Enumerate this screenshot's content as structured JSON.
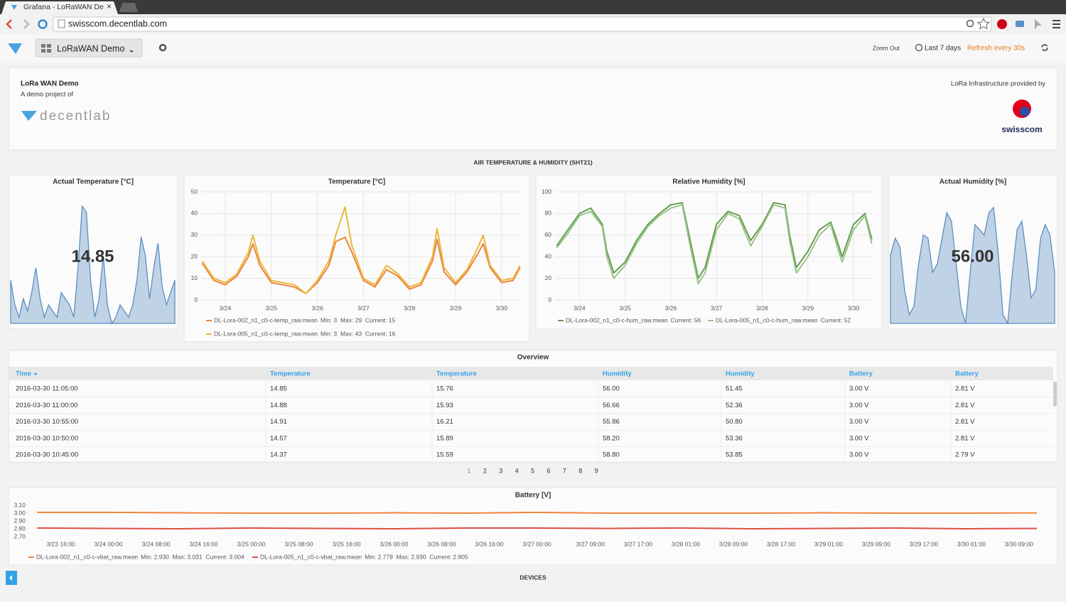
{
  "browser": {
    "tab_title": "Grafana - LoRaWAN De",
    "url": "swisscom.decentlab.com"
  },
  "toolbar": {
    "dashboard": "LoRaWAN Demo",
    "zoom_out": "Zoom Out",
    "time_range": "Last 7 days",
    "refresh": "Refresh every 30s"
  },
  "header": {
    "title": "LoRa WAN Demo",
    "subtitle": "A demo project of",
    "logo": "decentlab",
    "provided_by": "LoRa Infrastructure provided by",
    "provider_logo": "swisscom"
  },
  "row_title": "AIR TEMPERATURE & HUMIDITY (SHT21)",
  "chart_data": [
    {
      "type": "singlestat",
      "title": "Actual Temperature [°C]",
      "values": [
        14.85
      ],
      "color": "#7eb26d",
      "sparkline": [
        18,
        14,
        12,
        15,
        13,
        16,
        20,
        15,
        12,
        14,
        13,
        12,
        16,
        15,
        14,
        12,
        20,
        30,
        29,
        18,
        12,
        15,
        22,
        14,
        11,
        12,
        14,
        13,
        12,
        14,
        18,
        25,
        22,
        15,
        20,
        24,
        17,
        14,
        16,
        18
      ]
    },
    {
      "type": "line",
      "title": "Temperature [°C]",
      "x": [
        23.5,
        23.75,
        24,
        24.25,
        24.5,
        24.6,
        24.75,
        25,
        25.25,
        25.5,
        25.75,
        26,
        26.25,
        26.4,
        26.6,
        26.75,
        27,
        27.25,
        27.5,
        27.75,
        28,
        28.25,
        28.5,
        28.6,
        28.75,
        29,
        29.25,
        29.5,
        29.6,
        29.75,
        30,
        30.25,
        30.4
      ],
      "xlim": [
        23.46,
        30.45
      ],
      "xticks": [
        {
          "value": 24,
          "label": "3/24"
        },
        {
          "value": 25,
          "label": "3/25"
        },
        {
          "value": 26,
          "label": "3/26"
        },
        {
          "value": 27,
          "label": "3/27"
        },
        {
          "value": 28,
          "label": "3/28"
        },
        {
          "value": 29,
          "label": "3/29"
        },
        {
          "value": 30,
          "label": "3/30"
        }
      ],
      "ylim": [
        0,
        50
      ],
      "yticks": [
        0,
        10,
        20,
        30,
        40,
        50
      ],
      "grid": true,
      "series": [
        {
          "name": "DL-Lora-002_n1_c0-c-temp_raw.mean",
          "legend_stats": "Min: 3  Max: 29  Current: 15",
          "color": "#ef843c",
          "values": [
            17,
            9,
            7,
            11,
            20,
            26,
            16,
            8,
            7,
            6,
            3,
            8,
            16,
            27,
            29,
            22,
            9,
            6,
            14,
            11,
            5,
            7,
            18,
            28,
            13,
            7,
            13,
            22,
            26,
            15,
            8,
            9,
            15
          ]
        },
        {
          "name": "DL-Lora-005_n1_c0-c-temp_raw.mean",
          "legend_stats": "Min: 3  Max: 43  Current: 16",
          "color": "#eab839",
          "values": [
            18,
            10,
            8,
            12,
            22,
            30,
            18,
            9,
            8,
            7,
            3,
            9,
            18,
            30,
            43,
            25,
            10,
            7,
            16,
            12,
            6,
            8,
            20,
            33,
            15,
            8,
            14,
            25,
            30,
            16,
            9,
            10,
            16
          ]
        }
      ]
    },
    {
      "type": "line",
      "title": "Relative Humidity [%]",
      "x": [
        23.5,
        23.75,
        24,
        24.25,
        24.5,
        24.6,
        24.75,
        25,
        25.25,
        25.5,
        25.75,
        26,
        26.25,
        26.4,
        26.6,
        26.75,
        27,
        27.25,
        27.5,
        27.75,
        28,
        28.25,
        28.5,
        28.6,
        28.75,
        29,
        29.25,
        29.5,
        29.6,
        29.75,
        30,
        30.25,
        30.4
      ],
      "xlim": [
        23.45,
        30.45
      ],
      "xticks": [
        {
          "value": 24,
          "label": "3/24"
        },
        {
          "value": 25,
          "label": "3/25"
        },
        {
          "value": 26,
          "label": "3/26"
        },
        {
          "value": 27,
          "label": "3/27"
        },
        {
          "value": 28,
          "label": "3/28"
        },
        {
          "value": 29,
          "label": "3/29"
        },
        {
          "value": 30,
          "label": "3/30"
        }
      ],
      "ylim": [
        0,
        100
      ],
      "yticks": [
        0,
        20,
        40,
        60,
        80,
        100
      ],
      "grid": true,
      "series": [
        {
          "name": "DL-Lora-002_n1_c0-c-hum_raw.mean",
          "legend_stats": "Current: 56",
          "color": "#629e51",
          "values": [
            50,
            65,
            80,
            85,
            70,
            45,
            25,
            35,
            55,
            70,
            80,
            88,
            90,
            60,
            20,
            30,
            70,
            82,
            78,
            55,
            70,
            90,
            88,
            60,
            30,
            45,
            65,
            72,
            60,
            40,
            70,
            80,
            56
          ]
        },
        {
          "name": "DL-Lora-005_n1_c0-c-hum_raw.mean",
          "legend_stats": "Current: 52",
          "color": "#9ac48a",
          "values": [
            48,
            62,
            78,
            82,
            68,
            40,
            20,
            32,
            52,
            68,
            78,
            85,
            88,
            55,
            15,
            25,
            65,
            80,
            75,
            50,
            68,
            88,
            85,
            55,
            25,
            40,
            60,
            70,
            55,
            35,
            65,
            78,
            52
          ]
        }
      ]
    },
    {
      "type": "singlestat",
      "title": "Actual Humidity [%]",
      "values": [
        56
      ],
      "value_labels": [
        "56.00"
      ],
      "color": "#7eb26d",
      "sparkline": [
        60,
        70,
        65,
        40,
        25,
        30,
        55,
        72,
        70,
        50,
        55,
        70,
        85,
        80,
        55,
        30,
        20,
        50,
        78,
        75,
        72,
        85,
        88,
        60,
        25,
        20,
        50,
        75,
        80,
        60,
        35,
        40,
        70,
        78,
        72,
        50
      ]
    },
    {
      "type": "line",
      "title": "Battery [V]",
      "x": [
        23.5,
        24,
        24.5,
        25,
        25.5,
        26,
        26.5,
        27,
        27.5,
        28,
        28.5,
        29,
        29.5,
        30,
        30.5
      ],
      "xlim": [
        23.44,
        30.53
      ],
      "xticks": [
        {
          "value": 23.6667,
          "label": "3/23 16:00"
        },
        {
          "value": 24,
          "label": "3/24 00:00"
        },
        {
          "value": 24.3333,
          "label": "3/24 08:00"
        },
        {
          "value": 24.6667,
          "label": "3/24 16:00"
        },
        {
          "value": 25,
          "label": "3/25 00:00"
        },
        {
          "value": 25.3333,
          "label": "3/25 08:00"
        },
        {
          "value": 25.6667,
          "label": "3/25 16:00"
        },
        {
          "value": 26,
          "label": "3/26 00:00"
        },
        {
          "value": 26.3333,
          "label": "3/26 08:00"
        },
        {
          "value": 26.6667,
          "label": "3/26 16:00"
        },
        {
          "value": 27,
          "label": "3/27 00:00"
        },
        {
          "value": 27.375,
          "label": "3/27 09:00"
        },
        {
          "value": 27.7083,
          "label": "3/27 17:00"
        },
        {
          "value": 28.0417,
          "label": "3/28 01:00"
        },
        {
          "value": 28.375,
          "label": "3/28 09:00"
        },
        {
          "value": 28.7083,
          "label": "3/28 17:00"
        },
        {
          "value": 29.0417,
          "label": "3/29 01:00"
        },
        {
          "value": 29.375,
          "label": "3/29 09:00"
        },
        {
          "value": 29.7083,
          "label": "3/29 17:00"
        },
        {
          "value": 30.0417,
          "label": "3/30 01:00"
        },
        {
          "value": 30.375,
          "label": "3/30 09:00"
        }
      ],
      "ylim": [
        2.7,
        3.1
      ],
      "yticks": [
        {
          "value": 2.7,
          "label": "2.70"
        },
        {
          "value": 2.8,
          "label": "2.80"
        },
        {
          "value": 2.9,
          "label": "2.90"
        },
        {
          "value": 3,
          "label": "3.00"
        },
        {
          "value": 3.1,
          "label": "3.10"
        }
      ],
      "grid": false,
      "series": [
        {
          "name": "DL-Lora-002_n1_c0-c-vbat_raw.mean",
          "legend_stats": "Min: 2.930  Max: 3.031  Current: 3.004",
          "color": "#ef843c",
          "values": [
            3.01,
            3.01,
            3.005,
            3.0,
            3.0,
            3.005,
            3.0,
            3.01,
            3.0,
            3.0,
            3.0,
            3.005,
            3.0,
            3.0,
            3.004
          ]
        },
        {
          "name": "DL-Lora-005_n1_c0-c-vbat_raw.mean",
          "legend_stats": "Min: 2.779  Max: 2.930  Current: 2.805",
          "color": "#e24d42",
          "values": [
            2.81,
            2.805,
            2.8,
            2.81,
            2.805,
            2.8,
            2.81,
            2.81,
            2.805,
            2.81,
            2.8,
            2.805,
            2.81,
            2.8,
            2.805
          ]
        }
      ]
    }
  ],
  "table": {
    "title": "Overview",
    "columns": [
      "Time",
      "Temperature",
      "Temperature",
      "Humidity",
      "Humidity",
      "Battery",
      "Battery"
    ],
    "rows": [
      [
        "2016-03-30 11:05:00",
        "14.85",
        "15.76",
        "56.00",
        "51.45",
        "3.00 V",
        "2.81 V"
      ],
      [
        "2016-03-30 11:00:00",
        "14.88",
        "15.93",
        "56.66",
        "52.36",
        "3.00 V",
        "2.81 V"
      ],
      [
        "2016-03-30 10:55:00",
        "14.91",
        "16.21",
        "55.86",
        "50.80",
        "3.00 V",
        "2.81 V"
      ],
      [
        "2016-03-30 10:50:00",
        "14.57",
        "15.89",
        "58.20",
        "53.36",
        "3.00 V",
        "2.81 V"
      ],
      [
        "2016-03-30 10:45:00",
        "14.37",
        "15.59",
        "58.80",
        "53.85",
        "3.00 V",
        "2.79 V"
      ]
    ],
    "pages": [
      1,
      2,
      3,
      4,
      5,
      6,
      7,
      8,
      9
    ]
  },
  "footer_row": "DEVICES"
}
